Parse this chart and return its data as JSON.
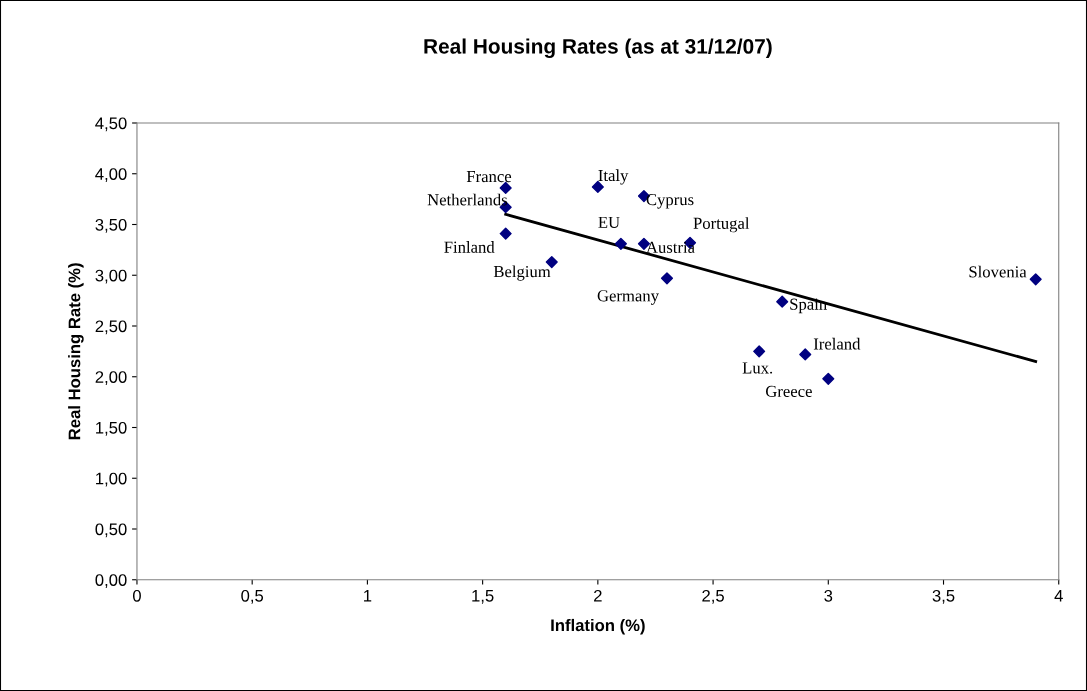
{
  "chart_data": {
    "type": "scatter",
    "title": "Real Housing Rates (as at 31/12/07)",
    "xlabel": "Inflation (%)",
    "ylabel": "Real Housing Rate (%)",
    "series": [
      {
        "marker": "diamond",
        "color": "#000080",
        "x": [
          1.6,
          1.6,
          1.6,
          1.8,
          2.0,
          2.2,
          2.1,
          2.2,
          2.4,
          2.3,
          2.8,
          2.7,
          2.9,
          3.0,
          3.9
        ],
        "values": [
          3.86,
          3.67,
          3.41,
          3.13,
          3.87,
          3.78,
          3.31,
          3.31,
          3.32,
          2.97,
          2.74,
          2.25,
          2.22,
          1.98,
          2.96
        ]
      },
      {
        "type": "line",
        "color": "#000000",
        "x": [
          1.6,
          3.9
        ],
        "values": [
          3.6,
          2.15
        ]
      }
    ],
    "annotations": [
      {
        "text": "France",
        "x": 1.6,
        "y": 3.86
      },
      {
        "text": "Netherlands",
        "x": 1.6,
        "y": 3.67
      },
      {
        "text": "Finland",
        "x": 1.6,
        "y": 3.41
      },
      {
        "text": "Belgium",
        "x": 1.8,
        "y": 3.13
      },
      {
        "text": "Italy",
        "x": 2.0,
        "y": 3.87
      },
      {
        "text": "Cyprus",
        "x": 2.2,
        "y": 3.78
      },
      {
        "text": "EU",
        "x": 2.1,
        "y": 3.31
      },
      {
        "text": "Austria",
        "x": 2.2,
        "y": 3.31
      },
      {
        "text": "Portugal",
        "x": 2.4,
        "y": 3.32
      },
      {
        "text": "Germany",
        "x": 2.3,
        "y": 2.97
      },
      {
        "text": "Spain",
        "x": 2.8,
        "y": 2.74
      },
      {
        "text": "Lux.",
        "x": 2.7,
        "y": 2.25
      },
      {
        "text": "Ireland",
        "x": 2.9,
        "y": 2.22
      },
      {
        "text": "Greece",
        "x": 3.0,
        "y": 1.98
      },
      {
        "text": "Slovenia",
        "x": 3.9,
        "y": 2.96
      }
    ],
    "grid": false,
    "legend": false,
    "xlim": [
      0,
      4
    ],
    "xticks": [
      0,
      {
        "value": 0.5,
        "label": "0,5"
      },
      1,
      {
        "value": 1.5,
        "label": "1,5"
      },
      2,
      {
        "value": 2.5,
        "label": "2,5"
      },
      3,
      {
        "value": 3.5,
        "label": "3,5"
      },
      4
    ],
    "ylim": [
      0,
      4.5
    ],
    "yticks": [
      {
        "value": 0,
        "label": "0,00"
      },
      {
        "value": 0.5,
        "label": "0,50"
      },
      {
        "value": 1,
        "label": "1,00"
      },
      {
        "value": 1.5,
        "label": "1,50"
      },
      {
        "value": 2,
        "label": "2,00"
      },
      {
        "value": 2.5,
        "label": "2,50"
      },
      {
        "value": 3,
        "label": "3,00"
      },
      {
        "value": 3.5,
        "label": "3,50"
      },
      {
        "value": 4,
        "label": "4,00"
      },
      {
        "value": 4.5,
        "label": "4,50"
      }
    ]
  }
}
